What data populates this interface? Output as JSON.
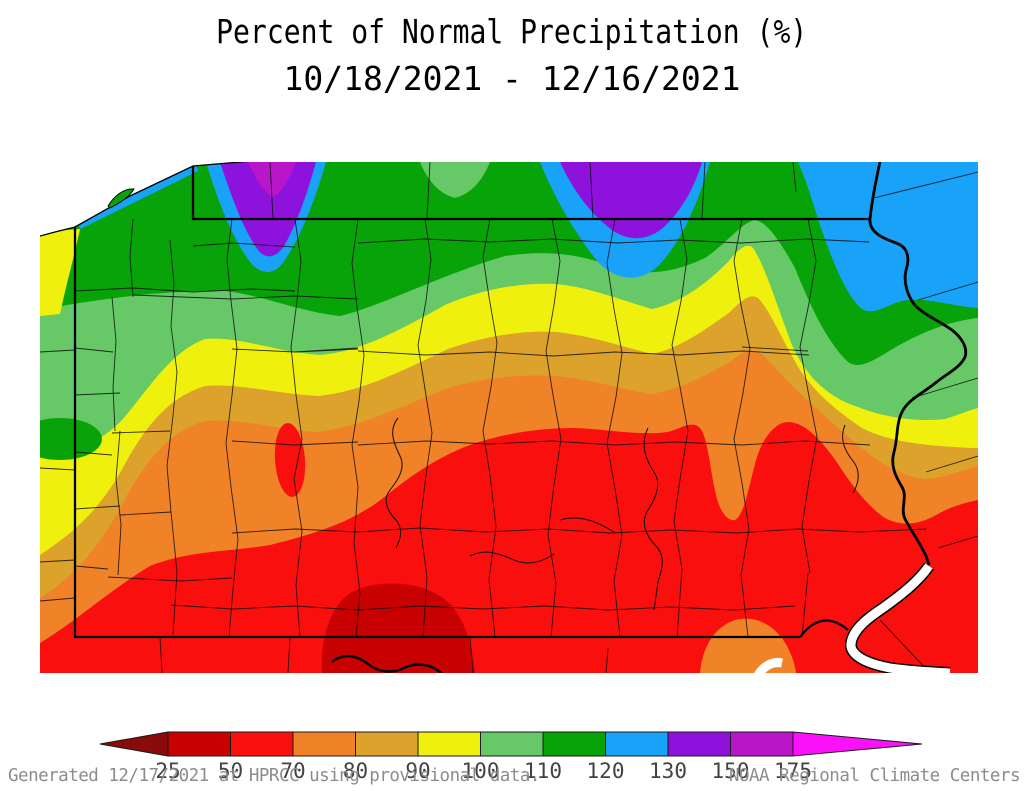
{
  "title": {
    "line1": "Percent of Normal Precipitation (%)",
    "line2": "10/18/2021 - 12/16/2021"
  },
  "footer": {
    "left": "Generated 12/17/2021 at HPRCC using provisional data.",
    "right": "NOAA Regional Climate Centers"
  },
  "scale": {
    "tick_labels": [
      "25",
      "50",
      "70",
      "80",
      "90",
      "100",
      "110",
      "120",
      "130",
      "150",
      "175"
    ],
    "segment_colors": [
      "#8b0a0a",
      "#c80000",
      "#fa0f0f",
      "#f08228",
      "#dca22b",
      "#f0f00f",
      "#66c866",
      "#08a308",
      "#18a2f8",
      "#8c12dc",
      "#b816c8",
      "#fb12fb"
    ],
    "description": "percent of normal precipitation color bins"
  },
  "map": {
    "region": "Pennsylvania and surrounding states",
    "colors": {
      "lt25": "#8b0a0a",
      "b25_50": "#c80000",
      "b50_70": "#fa0f0f",
      "b70_80": "#f08228",
      "b80_90": "#dca22b",
      "b90_100": "#f0f00f",
      "b100_110": "#66c866",
      "b110_120": "#08a308",
      "b120_130": "#18a2f8",
      "b130_150": "#8c12dc",
      "b150_175": "#b816c8",
      "gt175": "#fb12fb",
      "water": "#ffffff"
    }
  }
}
